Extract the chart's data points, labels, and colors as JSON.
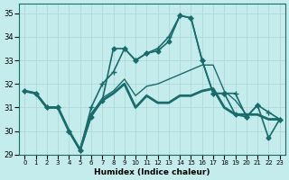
{
  "xlabel": "Humidex (Indice chaleur)",
  "xlim": [
    -0.5,
    23.5
  ],
  "ylim": [
    29,
    35.4
  ],
  "yticks": [
    29,
    30,
    31,
    32,
    33,
    34,
    35
  ],
  "xticks": [
    0,
    1,
    2,
    3,
    4,
    5,
    6,
    7,
    8,
    9,
    10,
    11,
    12,
    13,
    14,
    15,
    16,
    17,
    18,
    19,
    20,
    21,
    22,
    23
  ],
  "background_color": "#c5ecec",
  "grid_color": "#b0d8d8",
  "line_color": "#1a6b6b",
  "lines": [
    {
      "y": [
        31.7,
        31.6,
        31.0,
        31.0,
        30.0,
        29.2,
        30.7,
        31.3,
        31.6,
        32.0,
        31.0,
        31.5,
        31.2,
        31.2,
        31.5,
        31.5,
        31.7,
        31.8,
        31.0,
        30.7,
        30.7,
        30.7,
        30.5,
        30.5
      ],
      "lw": 2.0,
      "marker": null,
      "ms": 0,
      "zorder": 2
    },
    {
      "y": [
        31.7,
        31.6,
        31.0,
        31.0,
        30.0,
        29.2,
        30.7,
        31.4,
        31.7,
        32.2,
        31.5,
        31.9,
        32.0,
        32.2,
        32.4,
        32.6,
        32.8,
        32.8,
        31.7,
        31.3,
        30.7,
        30.7,
        30.5,
        30.5
      ],
      "lw": 1.0,
      "marker": null,
      "ms": 0,
      "zorder": 2
    },
    {
      "y": [
        31.7,
        31.6,
        31.0,
        31.0,
        30.0,
        29.2,
        30.6,
        31.3,
        33.5,
        33.5,
        33.0,
        33.3,
        33.4,
        33.8,
        34.9,
        34.8,
        33.0,
        31.6,
        31.6,
        30.7,
        30.6,
        31.1,
        29.7,
        30.5
      ],
      "lw": 1.2,
      "marker": "D",
      "ms": 2.5,
      "zorder": 3
    },
    {
      "y": [
        31.7,
        31.6,
        31.0,
        31.0,
        30.0,
        29.2,
        31.0,
        32.0,
        32.5,
        33.5,
        33.0,
        33.3,
        33.5,
        34.0,
        34.9,
        34.8,
        33.0,
        31.6,
        31.6,
        31.6,
        30.6,
        31.1,
        30.8,
        30.5
      ],
      "lw": 1.2,
      "marker": "+",
      "ms": 4,
      "zorder": 3
    }
  ]
}
